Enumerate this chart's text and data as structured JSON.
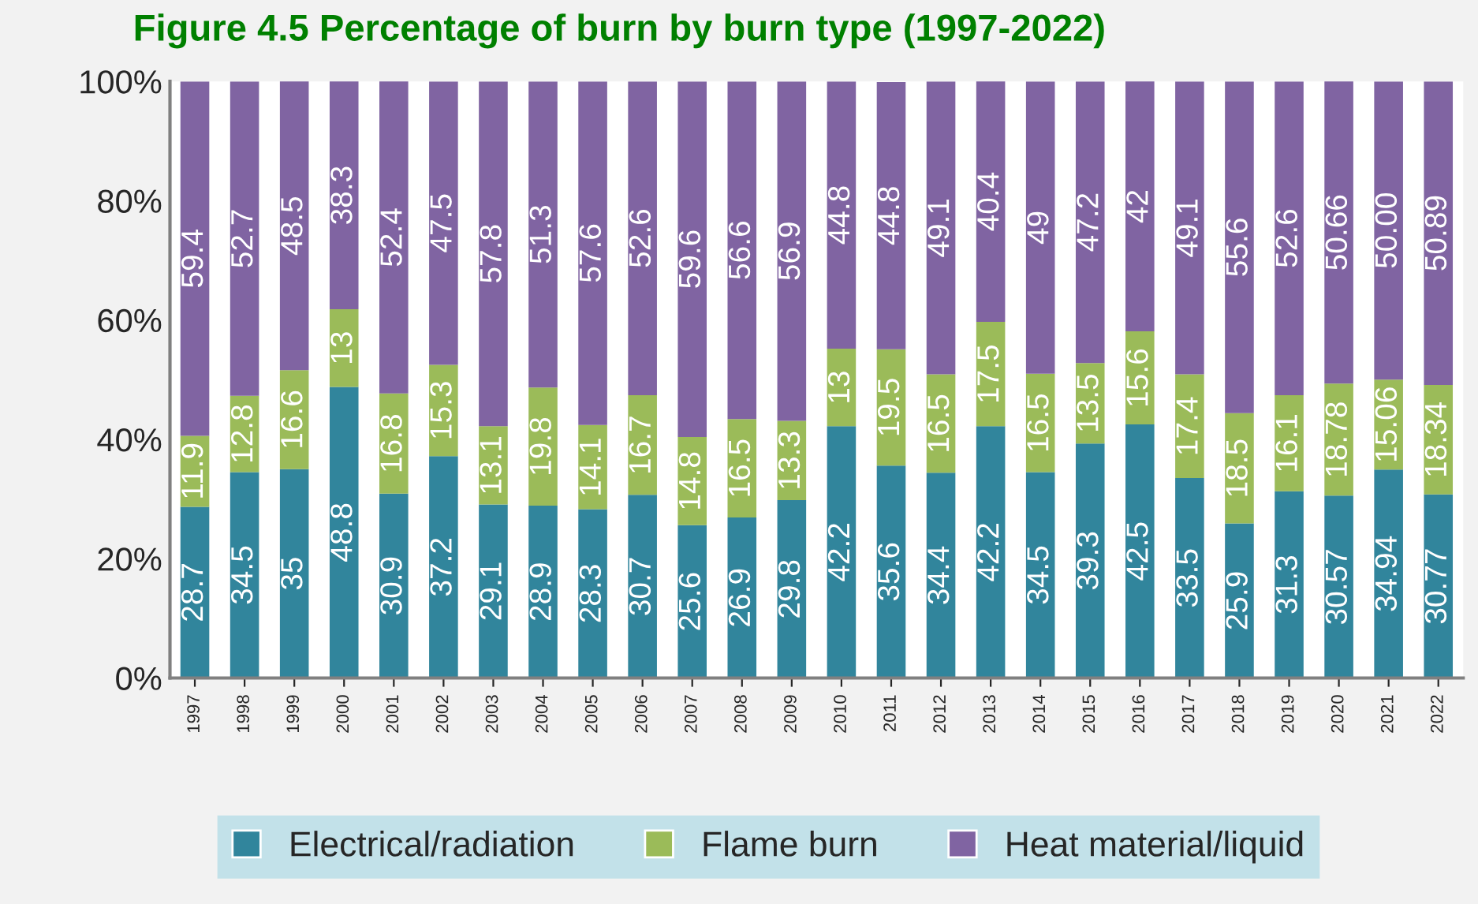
{
  "chart_data": {
    "type": "bar",
    "stacked": true,
    "title": "Figure 4.5 Percentage of burn by burn type (1997-2022)",
    "categories": [
      "1997",
      "1998",
      "1999",
      "2000",
      "2001",
      "2002",
      "2003",
      "2004",
      "2005",
      "2006",
      "2007",
      "2008",
      "2009",
      "2010",
      "2011",
      "2012",
      "2013",
      "2014",
      "2015",
      "2016",
      "2017",
      "2018",
      "2019",
      "2020",
      "2021",
      "2022"
    ],
    "series": [
      {
        "name": "Electrical/radiation",
        "color": "#31859c",
        "values": [
          28.7,
          34.5,
          35,
          48.8,
          30.9,
          37.2,
          29.1,
          28.9,
          28.3,
          30.7,
          25.6,
          26.9,
          29.8,
          42.2,
          35.6,
          34.4,
          42.2,
          34.5,
          39.3,
          42.5,
          33.5,
          25.9,
          31.3,
          30.57,
          34.94,
          30.77
        ],
        "value_labels": [
          "28.7",
          "34.5",
          "35",
          "48.8",
          "30.9",
          "37.2",
          "29.1",
          "28.9",
          "28.3",
          "30.7",
          "25.6",
          "26.9",
          "29.8",
          "42.2",
          "35.6",
          "34.4",
          "42.2",
          "34.5",
          "39.3",
          "42.5",
          "33.5",
          "25.9",
          "31.3",
          "30.57",
          "34.94",
          "30.77"
        ]
      },
      {
        "name": "Flame burn",
        "color": "#9bbb59",
        "values": [
          11.9,
          12.8,
          16.6,
          13,
          16.8,
          15.3,
          13.1,
          19.8,
          14.1,
          16.7,
          14.8,
          16.5,
          13.3,
          13,
          19.5,
          16.5,
          17.5,
          16.5,
          13.5,
          15.6,
          17.4,
          18.5,
          16.1,
          18.78,
          15.06,
          18.34
        ],
        "value_labels": [
          "11.9",
          "12.8",
          "16.6",
          "13",
          "16.8",
          "15.3",
          "13.1",
          "19.8",
          "14.1",
          "16.7",
          "14.8",
          "16.5",
          "13.3",
          "13",
          "19.5",
          "16.5",
          "17.5",
          "16.5",
          "13.5",
          "15.6",
          "17.4",
          "18.5",
          "16.1",
          "18.78",
          "15.06",
          "18.34"
        ]
      },
      {
        "name": "Heat material/liquid",
        "color": "#8064a2",
        "values": [
          59.4,
          52.7,
          48.5,
          38.3,
          52.4,
          47.5,
          57.8,
          51.3,
          57.6,
          52.6,
          59.6,
          56.6,
          56.9,
          44.8,
          44.8,
          49.1,
          40.4,
          49,
          47.2,
          42,
          49.1,
          55.6,
          52.6,
          50.66,
          50.0,
          50.89
        ],
        "value_labels": [
          "59.4",
          "52.7",
          "48.5",
          "38.3",
          "52.4",
          "47.5",
          "57.8",
          "51.3",
          "57.6",
          "52.6",
          "59.6",
          "56.6",
          "56.9",
          "44.8",
          "44.8",
          "49.1",
          "40.4",
          "49",
          "47.2",
          "42",
          "49.1",
          "55.6",
          "52.6",
          "50.66",
          "50.00",
          "50.89"
        ]
      }
    ],
    "ylim": [
      0,
      100
    ],
    "yticks": [
      {
        "value": 0,
        "label": "0%"
      },
      {
        "value": 20,
        "label": "20%"
      },
      {
        "value": 40,
        "label": "40%"
      },
      {
        "value": 60,
        "label": "60%"
      },
      {
        "value": 80,
        "label": "80%"
      },
      {
        "value": 100,
        "label": "100%"
      }
    ],
    "grid": false,
    "legend": "bottom"
  }
}
